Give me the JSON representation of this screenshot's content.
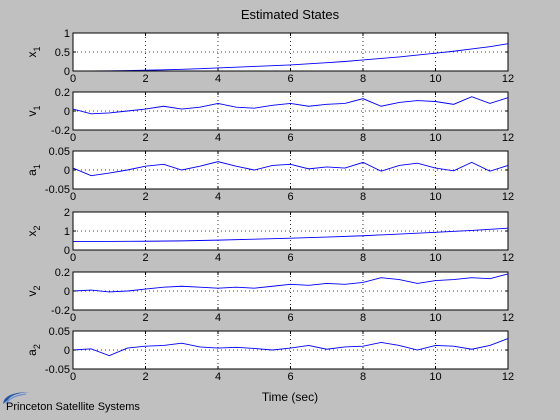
{
  "figure": {
    "title": "Estimated States",
    "xlabel": "Time (sec)",
    "logo_text": "Princeton Satellite Systems",
    "background": "#c0c0c0",
    "axes_bg": "#ffffff",
    "line_color": "#0000ff",
    "grid_color": "#000000"
  },
  "chart_data": [
    {
      "type": "line",
      "ylabel_main": "x",
      "ylabel_sub": "1",
      "xlim": [
        0,
        12
      ],
      "ylim": [
        0,
        1
      ],
      "xticks": [
        0,
        2,
        4,
        6,
        8,
        10,
        12
      ],
      "yticks": [
        0,
        0.5,
        1
      ],
      "ytick_labels": [
        "0",
        "0.5",
        "1"
      ],
      "grid": true,
      "series": [
        {
          "x": [
            0,
            0.5,
            1,
            1.5,
            2,
            2.5,
            3,
            3.5,
            4,
            4.5,
            5,
            5.5,
            6,
            6.5,
            7,
            7.5,
            8,
            8.5,
            9,
            9.5,
            10,
            10.5,
            11,
            11.5,
            12
          ],
          "values": [
            0,
            0.002,
            0.005,
            0.01,
            0.02,
            0.03,
            0.045,
            0.06,
            0.08,
            0.1,
            0.12,
            0.14,
            0.16,
            0.19,
            0.22,
            0.25,
            0.29,
            0.33,
            0.37,
            0.42,
            0.47,
            0.52,
            0.58,
            0.64,
            0.72
          ]
        }
      ]
    },
    {
      "type": "line",
      "ylabel_main": "v",
      "ylabel_sub": "1",
      "xlim": [
        0,
        12
      ],
      "ylim": [
        -0.2,
        0.2
      ],
      "xticks": [
        0,
        2,
        4,
        6,
        8,
        10,
        12
      ],
      "yticks": [
        -0.2,
        0,
        0.2
      ],
      "ytick_labels": [
        "-0.2",
        "0",
        "0.2"
      ],
      "grid": true,
      "series": [
        {
          "x": [
            0,
            0.5,
            1,
            1.5,
            2,
            2.5,
            3,
            3.5,
            4,
            4.5,
            5,
            5.5,
            6,
            6.5,
            7,
            7.5,
            8,
            8.5,
            9,
            9.5,
            10,
            10.5,
            11,
            11.5,
            12
          ],
          "values": [
            0.02,
            -0.03,
            -0.02,
            0.0,
            0.02,
            0.05,
            0.02,
            0.04,
            0.08,
            0.04,
            0.03,
            0.06,
            0.08,
            0.05,
            0.07,
            0.08,
            0.13,
            0.05,
            0.09,
            0.11,
            0.1,
            0.07,
            0.15,
            0.08,
            0.14
          ]
        }
      ]
    },
    {
      "type": "line",
      "ylabel_main": "a",
      "ylabel_sub": "1",
      "xlim": [
        0,
        12
      ],
      "ylim": [
        -0.05,
        0.05
      ],
      "xticks": [
        0,
        2,
        4,
        6,
        8,
        10,
        12
      ],
      "yticks": [
        -0.05,
        0,
        0.05
      ],
      "ytick_labels": [
        "-0.05",
        "0",
        "0.05"
      ],
      "grid": true,
      "series": [
        {
          "x": [
            0,
            0.5,
            1,
            1.5,
            2,
            2.5,
            3,
            3.5,
            4,
            4.5,
            5,
            5.5,
            6,
            6.5,
            7,
            7.5,
            8,
            8.5,
            9,
            9.5,
            10,
            10.5,
            11,
            11.5,
            12
          ],
          "values": [
            0.005,
            -0.015,
            -0.008,
            0.0,
            0.01,
            0.015,
            0.0,
            0.01,
            0.022,
            0.01,
            0.0,
            0.012,
            0.015,
            0.003,
            0.008,
            0.005,
            0.02,
            -0.003,
            0.012,
            0.018,
            0.005,
            -0.002,
            0.02,
            -0.003,
            0.012
          ]
        }
      ]
    },
    {
      "type": "line",
      "ylabel_main": "x",
      "ylabel_sub": "2",
      "xlim": [
        0,
        12
      ],
      "ylim": [
        0,
        2
      ],
      "xticks": [
        0,
        2,
        4,
        6,
        8,
        10,
        12
      ],
      "yticks": [
        0,
        1,
        2
      ],
      "ytick_labels": [
        "0",
        "1",
        "2"
      ],
      "grid": true,
      "series": [
        {
          "x": [
            0,
            1,
            2,
            3,
            4,
            5,
            6,
            7,
            8,
            9,
            10,
            11,
            12
          ],
          "values": [
            0.45,
            0.45,
            0.46,
            0.48,
            0.52,
            0.57,
            0.62,
            0.68,
            0.75,
            0.84,
            0.93,
            1.03,
            1.15
          ]
        }
      ]
    },
    {
      "type": "line",
      "ylabel_main": "v",
      "ylabel_sub": "2",
      "xlim": [
        0,
        12
      ],
      "ylim": [
        -0.2,
        0.2
      ],
      "xticks": [
        0,
        2,
        4,
        6,
        8,
        10,
        12
      ],
      "yticks": [
        -0.2,
        0,
        0.2
      ],
      "ytick_labels": [
        "-0.2",
        "0",
        "0.2"
      ],
      "grid": true,
      "series": [
        {
          "x": [
            0,
            0.5,
            1,
            1.5,
            2,
            2.5,
            3,
            3.5,
            4,
            4.5,
            5,
            5.5,
            6,
            6.5,
            7,
            7.5,
            8,
            8.5,
            9,
            9.5,
            10,
            10.5,
            11,
            11.5,
            12
          ],
          "values": [
            0.0,
            0.01,
            -0.01,
            0.0,
            0.02,
            0.04,
            0.05,
            0.04,
            0.03,
            0.04,
            0.03,
            0.05,
            0.07,
            0.06,
            0.08,
            0.07,
            0.09,
            0.14,
            0.12,
            0.08,
            0.11,
            0.12,
            0.14,
            0.13,
            0.18
          ]
        }
      ]
    },
    {
      "type": "line",
      "ylabel_main": "a",
      "ylabel_sub": "2",
      "xlim": [
        0,
        12
      ],
      "ylim": [
        -0.05,
        0.05
      ],
      "xticks": [
        0,
        2,
        4,
        6,
        8,
        10,
        12
      ],
      "yticks": [
        -0.05,
        0,
        0.05
      ],
      "ytick_labels": [
        "-0.05",
        "0",
        "0.05"
      ],
      "grid": true,
      "series": [
        {
          "x": [
            0,
            0.5,
            1,
            1.5,
            2,
            2.5,
            3,
            3.5,
            4,
            4.5,
            5,
            5.5,
            6,
            6.5,
            7,
            7.5,
            8,
            8.5,
            9,
            9.5,
            10,
            10.5,
            11,
            11.5,
            12
          ],
          "values": [
            0.0,
            0.003,
            -0.015,
            0.005,
            0.01,
            0.012,
            0.018,
            0.008,
            0.005,
            0.007,
            0.004,
            0.0,
            0.005,
            0.012,
            0.002,
            0.008,
            0.01,
            0.02,
            0.012,
            0.0,
            0.012,
            0.01,
            0.002,
            0.012,
            0.03
          ]
        }
      ]
    }
  ]
}
